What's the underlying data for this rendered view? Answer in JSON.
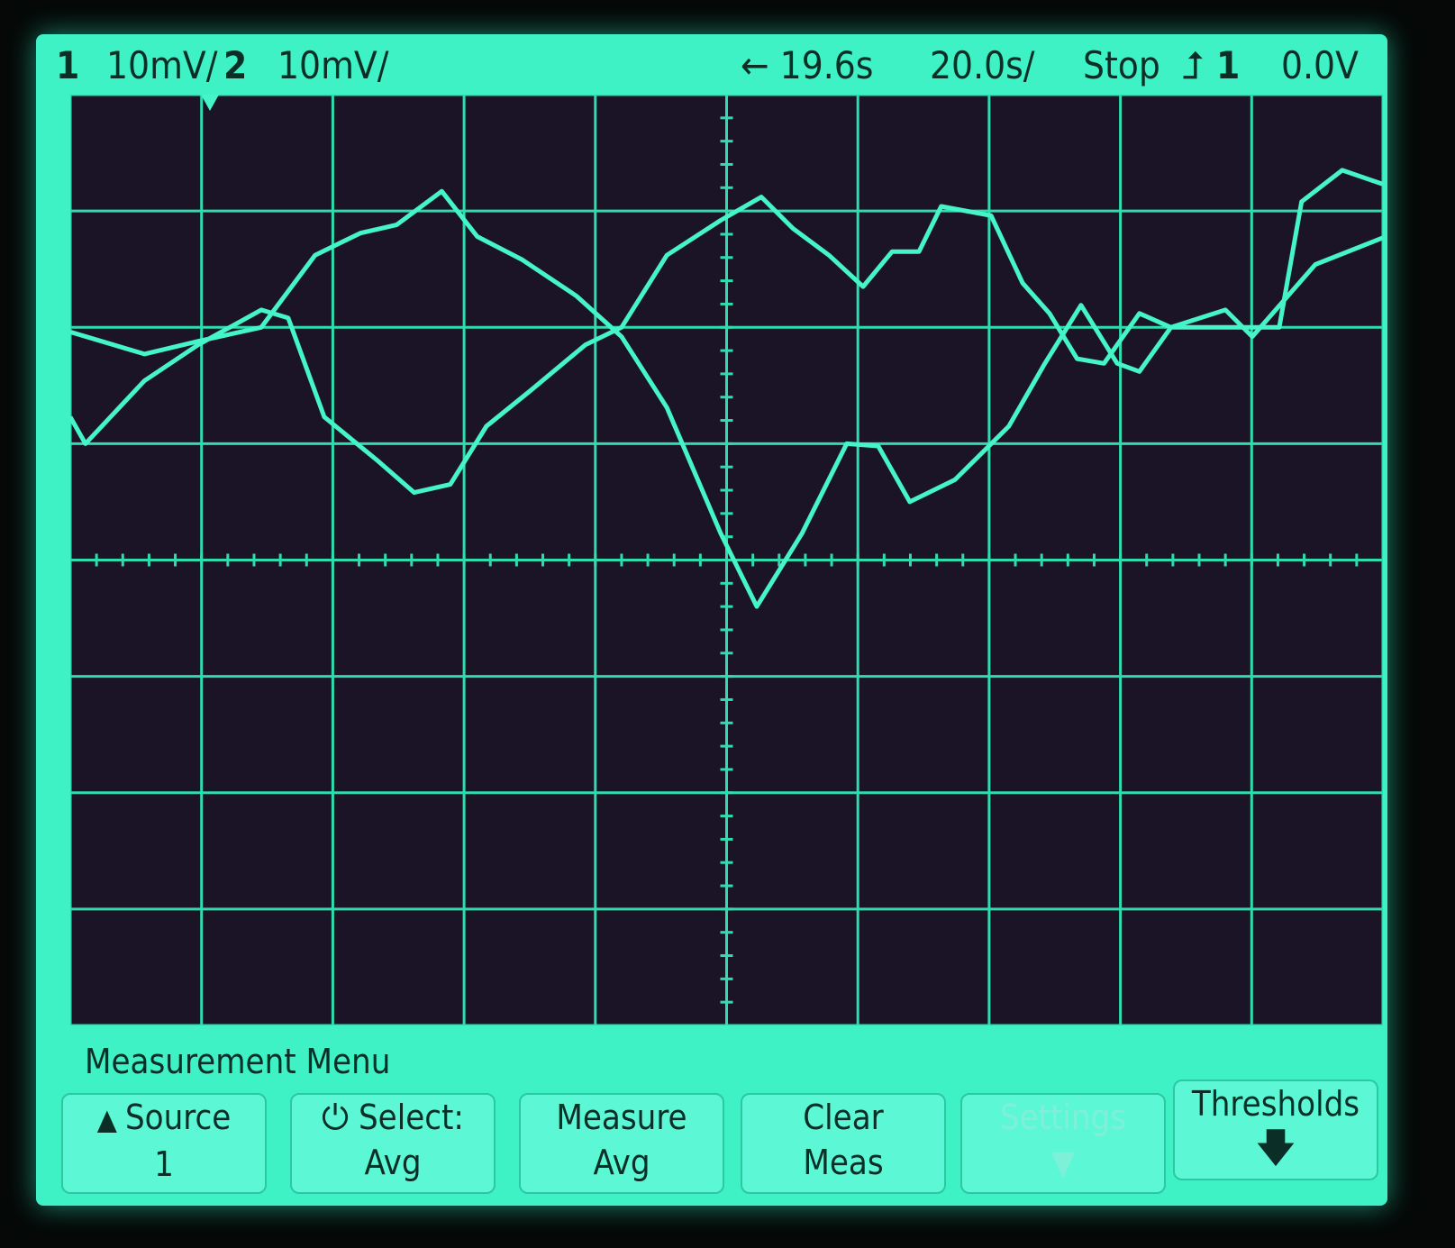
{
  "header": {
    "ch1_label": "1",
    "ch1_scale": "10mV/",
    "ch2_label": "2",
    "ch2_scale": "10mV/",
    "delay": "← 19.6s",
    "timebase": "20.0s/",
    "run_state": "Stop",
    "trigger_source": "1",
    "trigger_level": "0.0V",
    "trigger_slope_icon": "rising-edge-icon"
  },
  "menu": {
    "title": "Measurement Menu",
    "softkeys": [
      {
        "line1": "Source",
        "line2": "1",
        "icon": "up-arrow-icon"
      },
      {
        "line1": "Select:",
        "line2": "Avg",
        "icon": "entry-knob-icon"
      },
      {
        "line1": "Measure",
        "line2": "Avg"
      },
      {
        "line1": "Clear",
        "line2": "Meas"
      },
      {
        "line1": "Settings",
        "line2": "",
        "disabled": true,
        "icon": "down-arrow-icon"
      },
      {
        "line1": "Thresholds",
        "line2": "",
        "icon": "down-arrow-icon"
      }
    ]
  },
  "colors": {
    "screen": "#3ef2c6",
    "graticule_bg": "#1b1426",
    "grid": "#2fdcae",
    "trace": "#45f5c8"
  },
  "chart_data": {
    "type": "line",
    "xlim": [
      -80.4,
      119.6
    ],
    "ylim": [
      -40,
      40
    ],
    "x_divisions": 10,
    "y_divisions": 8,
    "grid": true,
    "xunit": "s",
    "yunit": "mV",
    "series": [
      {
        "t": [
          -80.4,
          -69.1,
          -60.9,
          -51.3,
          -43.1,
          -36.2,
          -30.7,
          -23.8,
          -18.4,
          -11.5,
          -3.3,
          3.6,
          10.5,
          18.7,
          24.2,
          31.1,
          37.9,
          42.7,
          47.5,
          54.4,
          62.6,
          68.1,
          73.6,
          79.1,
          82.5,
          87.3,
          103.8,
          107.2,
          113.4,
          119.6
        ],
        "v": [
          19.6,
          17.7,
          18.8,
          20.0,
          26.2,
          28.1,
          28.8,
          31.7,
          27.8,
          25.8,
          22.7,
          19.2,
          13.1,
          2.3,
          -4.0,
          2.3,
          10.0,
          9.8,
          5.0,
          6.9,
          11.5,
          16.9,
          21.9,
          16.9,
          16.2,
          20.0,
          20.0,
          30.8,
          33.5,
          32.3
        ]
      },
      {
        "t": [
          -80.4,
          -78.1,
          -69.1,
          -60.9,
          -51.3,
          -47.2,
          -41.7,
          -33.5,
          -28.0,
          -22.5,
          -17.0,
          -10.2,
          -1.9,
          3.6,
          10.5,
          18.7,
          24.9,
          29.7,
          35.2,
          40.4,
          44.8,
          48.9,
          52.3,
          59.9,
          64.7,
          68.8,
          73.0,
          77.1,
          82.5,
          87.3,
          95.6,
          99.7,
          109.3,
          119.6
        ],
        "v": [
          12.3,
          10.0,
          15.4,
          18.5,
          21.5,
          20.8,
          12.3,
          8.5,
          5.8,
          6.5,
          11.5,
          14.6,
          18.5,
          20.0,
          26.2,
          29.2,
          31.2,
          28.5,
          26.2,
          23.5,
          26.5,
          26.5,
          30.4,
          29.6,
          23.8,
          21.2,
          17.3,
          16.9,
          21.2,
          20.0,
          21.5,
          19.2,
          25.4,
          27.7
        ]
      }
    ]
  }
}
